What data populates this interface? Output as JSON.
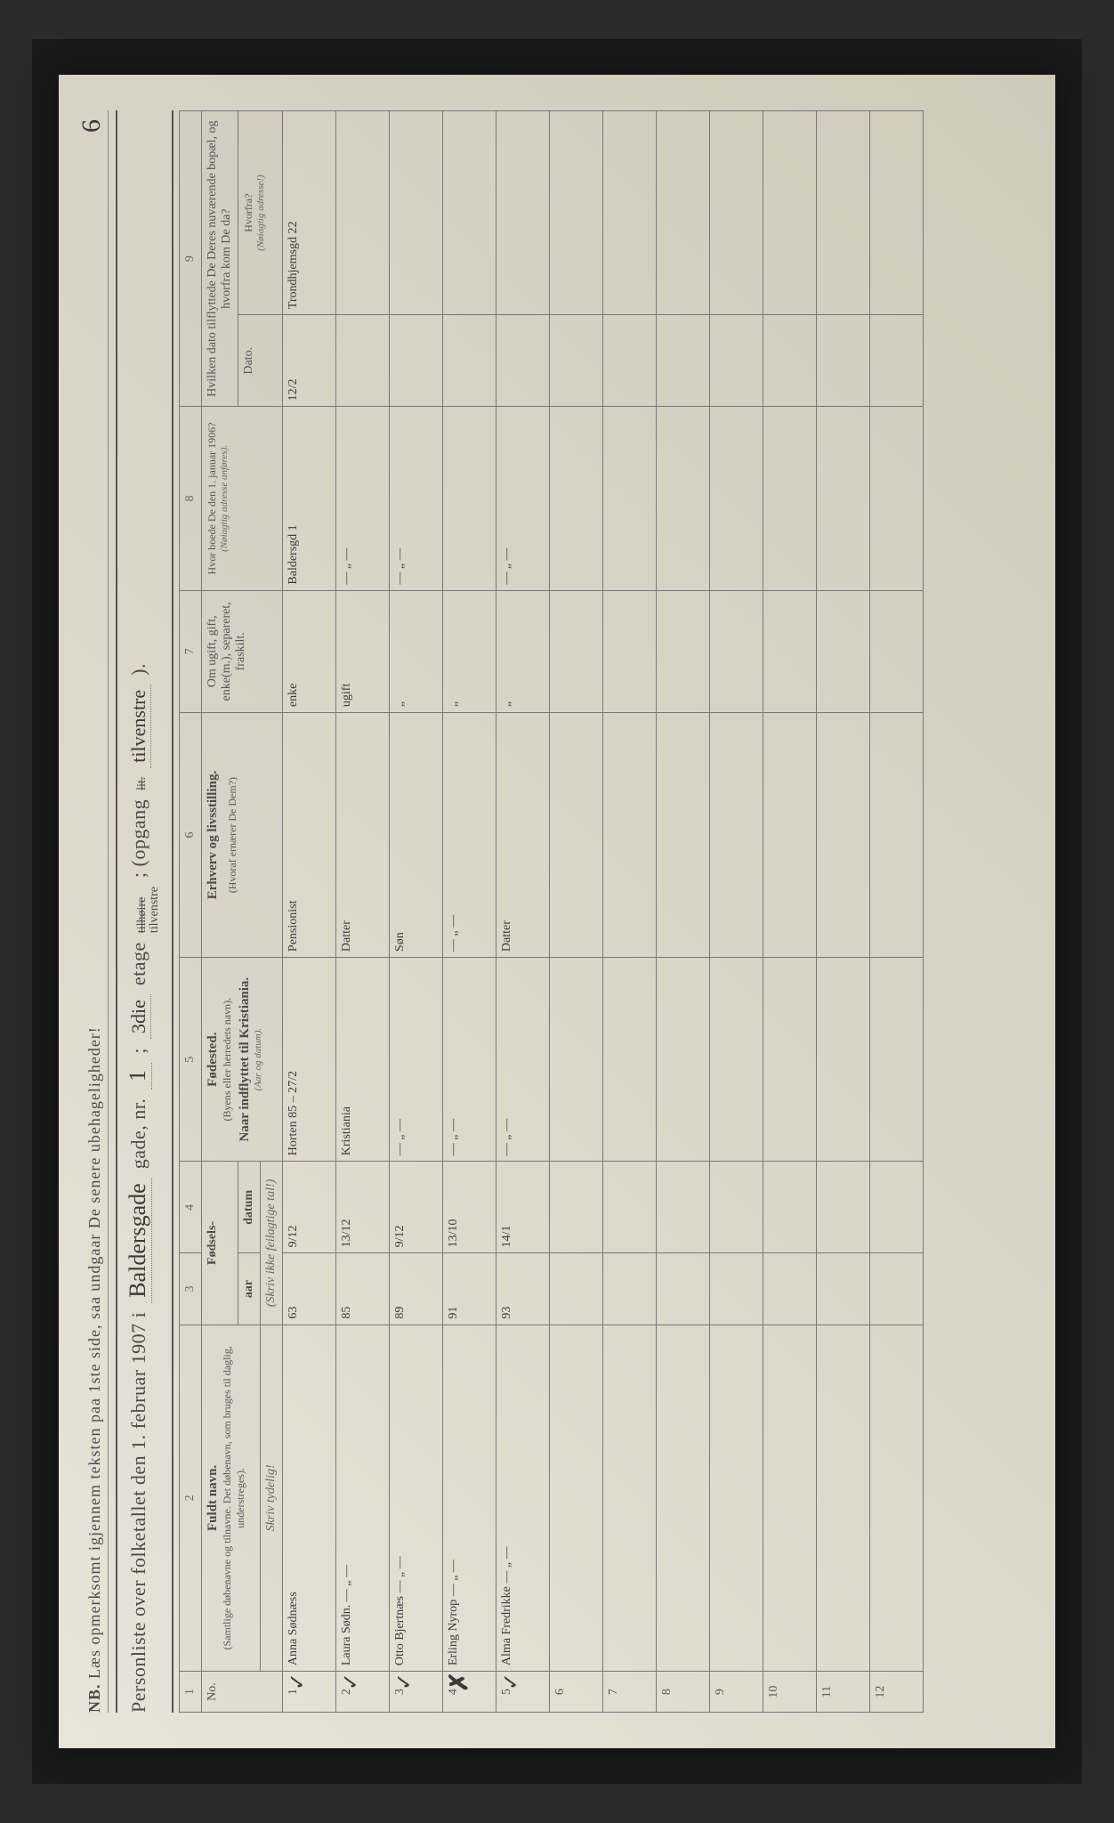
{
  "page_number_hw": "6",
  "nb": {
    "prefix": "NB.",
    "text": "Læs opmerksomt igjennem teksten paa 1ste side, saa undgaar De senere ubehageligheder!"
  },
  "title": {
    "left": "Personliste over folketallet den 1. februar 1907 i",
    "street_hw": "Baldersgade",
    "gade_nr": "gade, nr.",
    "nr_hw": "1",
    "sep": ";",
    "etage_hw": "3die",
    "etage": "etage",
    "tilhoire_strike": "tilhøire",
    "tilvenstre": "tilvenstre",
    "opgang": "; (opgang",
    "lit_strike": "lit.",
    "opgang_hw": "tilvenstre",
    "close": ")."
  },
  "headers": {
    "colnums": [
      "1",
      "2",
      "3",
      "4",
      "5",
      "6",
      "7",
      "8",
      "9"
    ],
    "no": "No.",
    "name": "Fuldt navn.",
    "name_sub": "(Samtlige døbenavne og tilnavne. Det døbenavn, som bruges til daglig, understreges).",
    "name_tiny": "Skriv tydelig!",
    "fodsels": "Fødsels-",
    "aar": "aar",
    "datum": "datum",
    "fodsels_tiny": "(Skriv ikke feilagtige tal!)",
    "fodested": "Fødested.",
    "fodested_sub": "(Byens eller herredets navn).",
    "fodested_sub2": "Naar indflyttet til Kristiania.",
    "fodested_tiny": "(Aar og datum).",
    "erhverv": "Erhverv og livsstilling.",
    "erhverv_sub": "(Hvoraf ernærer De Dem?)",
    "civil": "Om ugift, gift, enke(m.), separeret, fraskilt.",
    "addr1906": "Hvor boede De den 1. januar 1906?",
    "addr1906_sub": "(Nøiagtig adresse anføres).",
    "moved": "Hvilken dato tilflyttede De Deres nuværende bopæl, og hvorfra kom De da?",
    "moved_dato": "Dato.",
    "moved_from": "Hvorfra?",
    "moved_from_sub": "(Nøiagtig adresse!)"
  },
  "rows": [
    {
      "no": "1",
      "mark": "check",
      "name": "Anna Sødnæss",
      "aar": "63",
      "datum": "9/12",
      "fodested": "Horten\n85 – 27/2",
      "erhverv": "Pensionist",
      "civil": "enke",
      "addr1906": "Baldersgd 1",
      "dato": "12/2",
      "from": "Trondhjemsgd 22"
    },
    {
      "no": "2",
      "mark": "check",
      "name": "Laura Sødn.  — „ —",
      "aar": "85",
      "datum": "13/12",
      "fodested": "Kristiania",
      "erhverv": "Datter",
      "civil": "ugift",
      "addr1906": "— „ —",
      "dato": "",
      "from": ""
    },
    {
      "no": "3",
      "mark": "check",
      "name": "Otto Bjertnæs — „ —",
      "aar": "89",
      "datum": "9/12",
      "fodested": "— „ —",
      "erhverv": "Søn",
      "civil": "„",
      "addr1906": "— „ —",
      "dato": "",
      "from": ""
    },
    {
      "no": "4",
      "mark": "x",
      "name": "Erling Nyrop — „ —",
      "aar": "91",
      "datum": "13/10",
      "fodested": "— „ —",
      "erhverv": "— „ —",
      "civil": "„",
      "addr1906": "",
      "dato": "",
      "from": ""
    },
    {
      "no": "5",
      "mark": "check",
      "name": "Alma Fredrikke — „ —",
      "aar": "93",
      "datum": "14/1",
      "fodested": "— „ —",
      "erhverv": "Datter",
      "civil": "„",
      "addr1906": "— „ —",
      "dato": "",
      "from": ""
    },
    {
      "no": "6"
    },
    {
      "no": "7"
    },
    {
      "no": "8"
    },
    {
      "no": "9"
    },
    {
      "no": "10"
    },
    {
      "no": "11"
    },
    {
      "no": "12"
    }
  ]
}
